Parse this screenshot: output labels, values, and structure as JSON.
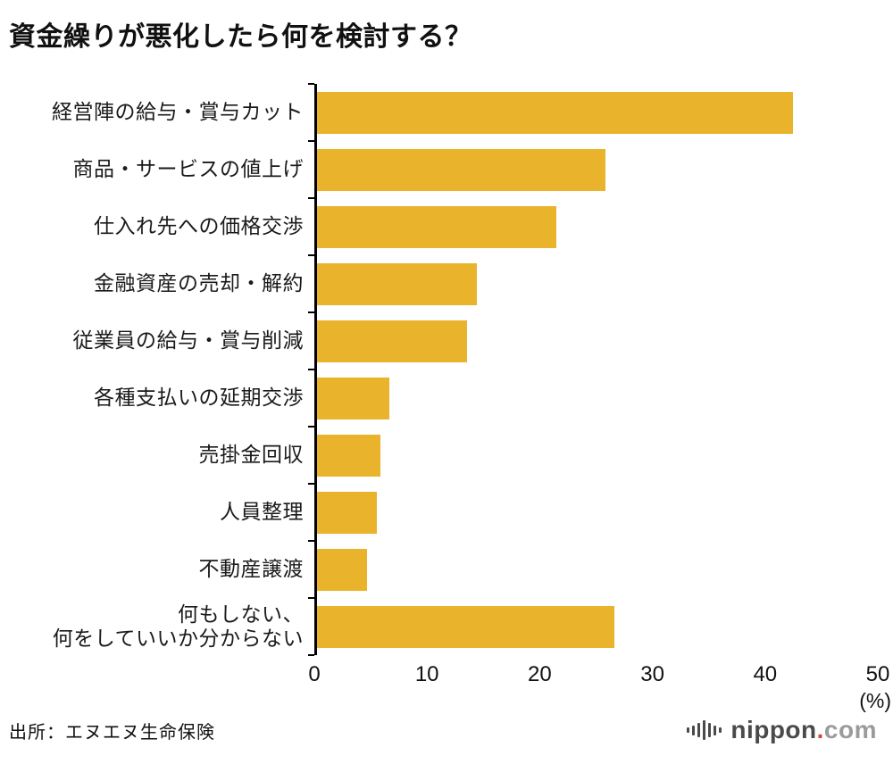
{
  "chart_data": {
    "type": "bar",
    "orientation": "horizontal",
    "title": "資金繰りが悪化したら何を検討する？",
    "unit": "(%)",
    "xlim": [
      0,
      50
    ],
    "xticks": [
      0,
      10,
      20,
      30,
      40,
      50
    ],
    "grid": false,
    "legend": false,
    "bar_color": "#E9B32C",
    "categories": [
      "経営陣の給与・賞与カット",
      "商品・サービスの値上げ",
      "仕入れ先への価格交渉",
      "金融資産の売却・解約",
      "従業員の給与・賞与削減",
      "各種支払いの延期交渉",
      "売掛金回収",
      "人員整理",
      "不動産譲渡",
      "何もしない、\n何をしていいか分からない"
    ],
    "values": [
      42.2,
      25.6,
      21.2,
      14.2,
      13.3,
      6.4,
      5.6,
      5.3,
      4.4,
      26.4
    ]
  },
  "footer": {
    "source": "出所：エヌエヌ生命保険"
  },
  "logo": {
    "name": "nippon",
    "dot": ".",
    "tld": "com",
    "accent": "#D9442A",
    "icon_bar_heights": [
      6,
      11,
      16,
      22,
      16,
      11,
      6
    ]
  }
}
